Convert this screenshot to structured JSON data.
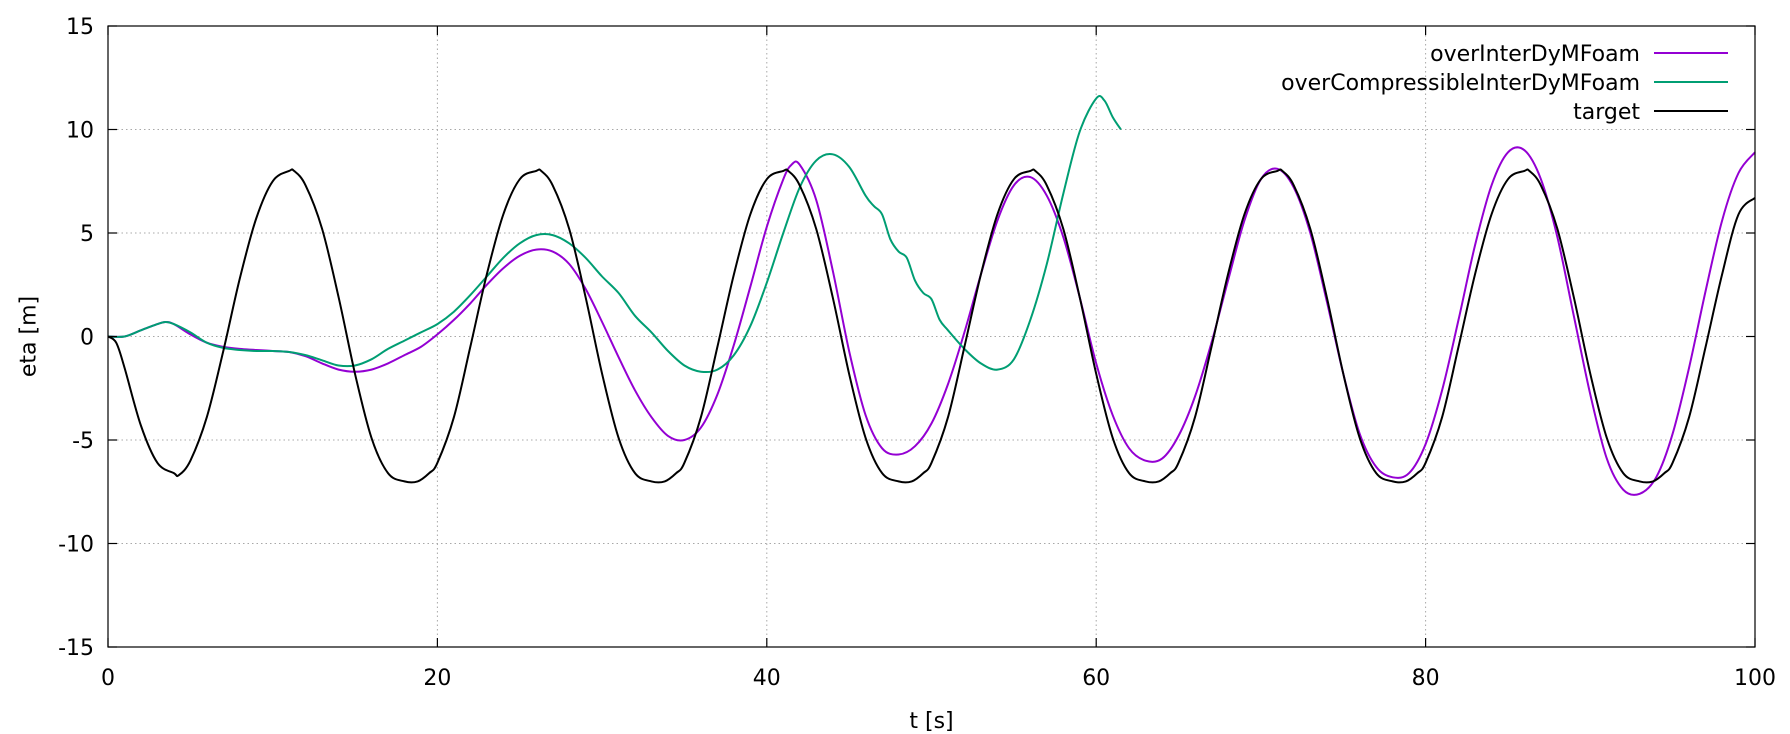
{
  "chart_data": {
    "type": "line",
    "title": "",
    "xlabel": "t [s]",
    "ylabel": "eta [m]",
    "xlim": [
      0,
      100
    ],
    "ylim": [
      -15,
      15
    ],
    "xticks": [
      0,
      20,
      40,
      60,
      80,
      100
    ],
    "yticks": [
      -15,
      -10,
      -5,
      0,
      5,
      10,
      15
    ],
    "grid": true,
    "legend_position": "top-right",
    "series": [
      {
        "name": "overInterDyMFoam",
        "color": "#9400d3",
        "x": [
          0,
          1,
          2,
          3,
          3.5,
          4,
          5,
          6,
          7,
          8,
          9,
          10,
          11,
          12,
          13,
          14,
          15,
          16,
          17,
          18,
          19,
          20,
          21,
          22,
          23,
          24,
          25,
          26,
          27,
          28,
          29,
          30,
          31,
          32,
          33,
          34,
          35,
          36,
          37,
          38,
          39,
          40,
          41,
          41.5,
          42,
          43,
          44,
          45,
          46,
          47,
          48,
          49,
          50,
          51,
          52,
          53,
          54,
          55,
          56,
          57,
          58,
          59,
          60,
          61,
          62,
          63,
          64,
          65,
          66,
          67,
          68,
          69,
          70,
          71,
          72,
          73,
          74,
          75,
          76,
          77,
          78,
          79,
          80,
          81,
          82,
          83,
          84,
          85,
          86,
          87,
          88,
          89,
          90,
          91,
          92,
          93,
          94,
          95,
          96,
          97,
          98,
          99,
          100
        ],
        "y": [
          0,
          0,
          0.3,
          0.6,
          0.7,
          0.6,
          0.1,
          -0.3,
          -0.5,
          -0.6,
          -0.65,
          -0.7,
          -0.75,
          -0.95,
          -1.3,
          -1.6,
          -1.7,
          -1.6,
          -1.3,
          -0.9,
          -0.5,
          0.1,
          0.8,
          1.6,
          2.5,
          3.3,
          3.9,
          4.2,
          4.1,
          3.5,
          2.3,
          0.7,
          -1.0,
          -2.6,
          -3.9,
          -4.8,
          -5.0,
          -4.4,
          -2.8,
          -0.4,
          2.4,
          5.3,
          7.6,
          8.3,
          8.3,
          6.6,
          3.2,
          -0.7,
          -3.8,
          -5.4,
          -5.7,
          -5.3,
          -4.2,
          -2.3,
          0.2,
          3.0,
          5.6,
          7.3,
          7.7,
          6.8,
          4.8,
          1.9,
          -1.3,
          -3.8,
          -5.4,
          -6.0,
          -5.9,
          -4.8,
          -2.9,
          -0.3,
          2.7,
          5.6,
          7.6,
          8.1,
          7.2,
          5.0,
          1.7,
          -1.8,
          -4.7,
          -6.3,
          -6.8,
          -6.6,
          -5.2,
          -2.6,
          0.8,
          4.4,
          7.3,
          8.9,
          9.0,
          7.6,
          4.8,
          1.0,
          -2.8,
          -5.9,
          -7.4,
          -7.6,
          -6.8,
          -4.7,
          -1.5,
          2.2,
          5.6,
          7.9,
          8.9
        ]
      },
      {
        "name": "overCompressibleInterDyMFoam",
        "color": "#009e73",
        "x": [
          0,
          1,
          2,
          3,
          3.5,
          4,
          5,
          6,
          7,
          8,
          9,
          10,
          11,
          12,
          13,
          14,
          15,
          16,
          17,
          18,
          19,
          20,
          21,
          22,
          23,
          24,
          25,
          26,
          27,
          28,
          29,
          30,
          31,
          32,
          33,
          34,
          35,
          36,
          37,
          38,
          39,
          40,
          41,
          42,
          43,
          44,
          45,
          46,
          46.5,
          47,
          47.5,
          48,
          48.5,
          49,
          49.5,
          50,
          50.5,
          51,
          52,
          53,
          54,
          55,
          56,
          57,
          58,
          59,
          60,
          60.5,
          61,
          61.5
        ],
        "y": [
          0,
          0,
          0.3,
          0.6,
          0.7,
          0.6,
          0.2,
          -0.3,
          -0.55,
          -0.65,
          -0.7,
          -0.7,
          -0.75,
          -0.9,
          -1.15,
          -1.4,
          -1.4,
          -1.1,
          -0.6,
          -0.2,
          0.2,
          0.6,
          1.2,
          2.0,
          2.9,
          3.8,
          4.5,
          4.9,
          4.9,
          4.5,
          3.8,
          2.9,
          2.1,
          1.0,
          0.2,
          -0.7,
          -1.4,
          -1.7,
          -1.6,
          -0.9,
          0.5,
          2.6,
          5.0,
          7.2,
          8.5,
          8.8,
          8.2,
          6.8,
          6.3,
          5.9,
          4.7,
          4.1,
          3.8,
          2.7,
          2.1,
          1.8,
          0.8,
          0.3,
          -0.6,
          -1.3,
          -1.6,
          -1.1,
          0.8,
          3.5,
          6.9,
          9.9,
          11.5,
          11.4,
          10.6,
          10.0
        ]
      },
      {
        "name": "target",
        "color": "#000000",
        "x": [
          0,
          0.5,
          1,
          2,
          3,
          4,
          4.3,
          5,
          6,
          7,
          8,
          9,
          10,
          11,
          11.3,
          12,
          13,
          14,
          15,
          16,
          17,
          18,
          18.8,
          19.5,
          20,
          21,
          22,
          23,
          24,
          25,
          26,
          26.3,
          27,
          28,
          29,
          30,
          31,
          32,
          33,
          33.8,
          34.5,
          35,
          36,
          37,
          38,
          39,
          40,
          41,
          41.3,
          42,
          43,
          44,
          45,
          46,
          47,
          48,
          48.8,
          49.5,
          50,
          51,
          52,
          53,
          54,
          55,
          56,
          56.3,
          57,
          58,
          59,
          60,
          61,
          62,
          63,
          63.8,
          64.5,
          65,
          66,
          67,
          68,
          69,
          70,
          71,
          71.3,
          72,
          73,
          74,
          75,
          76,
          77,
          78,
          78.8,
          79.5,
          80,
          81,
          82,
          83,
          84,
          85,
          86,
          86.3,
          87,
          88,
          89,
          90,
          91,
          92,
          93,
          93.8,
          94.5,
          95,
          96,
          97,
          98,
          99,
          100
        ],
        "y": [
          0,
          -0.3,
          -1.5,
          -4.3,
          -6.1,
          -6.6,
          -6.7,
          -6.0,
          -3.9,
          -0.7,
          2.8,
          5.7,
          7.5,
          8.0,
          8.0,
          7.3,
          5.2,
          1.9,
          -1.8,
          -4.9,
          -6.6,
          -7.0,
          -7.0,
          -6.6,
          -6.1,
          -3.9,
          -0.5,
          3.0,
          5.9,
          7.6,
          8.0,
          8.0,
          7.3,
          5.2,
          1.9,
          -1.8,
          -4.9,
          -6.6,
          -7.0,
          -7.0,
          -6.6,
          -6.1,
          -3.9,
          -0.5,
          3.0,
          5.9,
          7.6,
          8.0,
          8.0,
          7.3,
          5.2,
          1.9,
          -1.8,
          -4.9,
          -6.6,
          -7.0,
          -7.0,
          -6.6,
          -6.1,
          -3.9,
          -0.5,
          3.0,
          5.9,
          7.6,
          8.0,
          8.0,
          7.3,
          5.2,
          1.9,
          -1.8,
          -4.9,
          -6.6,
          -7.0,
          -7.0,
          -6.6,
          -6.1,
          -3.9,
          -0.5,
          3.0,
          5.9,
          7.6,
          8.0,
          8.0,
          7.3,
          5.2,
          1.9,
          -1.8,
          -4.9,
          -6.6,
          -7.0,
          -7.0,
          -6.6,
          -6.1,
          -3.9,
          -0.5,
          3.0,
          5.9,
          7.6,
          8.0,
          8.0,
          7.3,
          5.2,
          1.9,
          -1.8,
          -4.9,
          -6.6,
          -7.0,
          -7.0,
          -6.6,
          -6.1,
          -3.9,
          -0.5,
          3.0,
          5.9,
          6.7
        ]
      }
    ]
  }
}
